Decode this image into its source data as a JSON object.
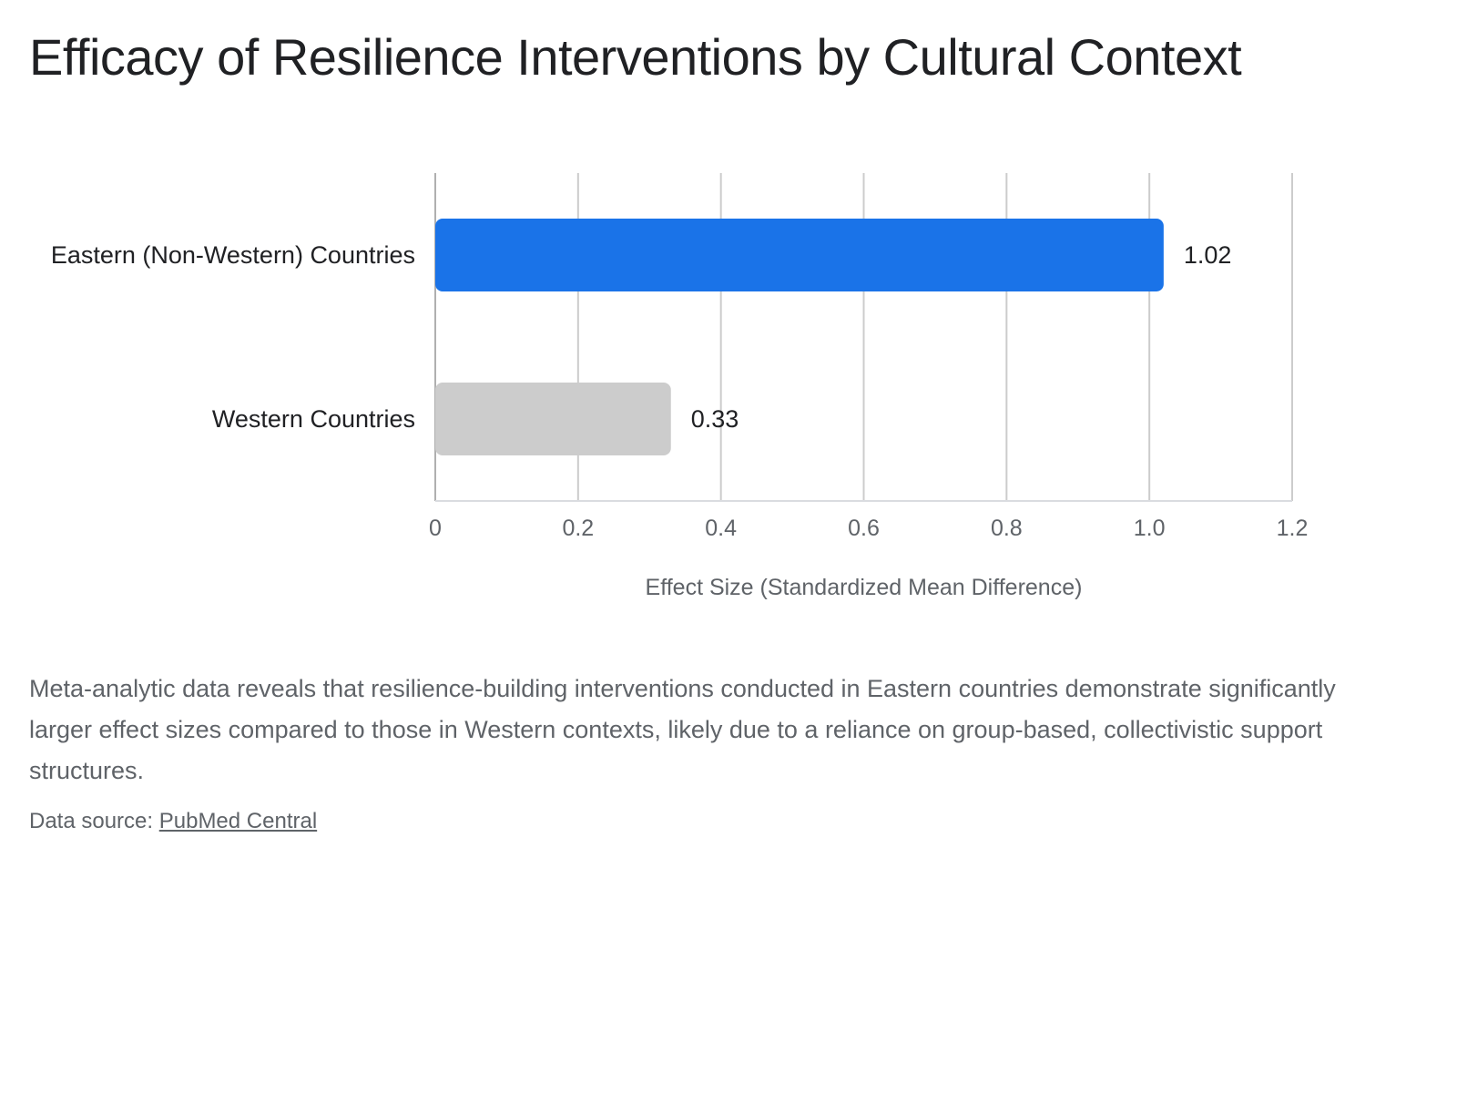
{
  "title": "Efficacy of Resilience Interventions by Cultural Context",
  "chart_data": {
    "type": "bar",
    "orientation": "horizontal",
    "categories": [
      "Eastern (Non-Western) Countries",
      "Western Countries"
    ],
    "values": [
      1.02,
      0.33
    ],
    "value_labels": [
      "1.02",
      "0.33"
    ],
    "bar_colors": [
      "#1a73e8",
      "#cccccc"
    ],
    "xlabel": "Effect Size (Standardized Mean Difference)",
    "ylabel": "",
    "xlim": [
      0,
      1.2
    ],
    "ticks": [
      0,
      0.2,
      0.4,
      0.6,
      0.8,
      1.0,
      1.2
    ],
    "tick_labels": [
      "0",
      "0.2",
      "0.4",
      "0.6",
      "0.8",
      "1.0",
      "1.2"
    ],
    "grid": true,
    "legend": "none"
  },
  "description": "Meta-analytic data reveals that resilience-building interventions conducted in Eastern countries demonstrate significantly larger effect sizes compared to those in Western contexts, likely due to a reliance on group-based, collectivistic support structures.",
  "source": {
    "prefix": "Data source: ",
    "link_text": "PubMed Central"
  }
}
